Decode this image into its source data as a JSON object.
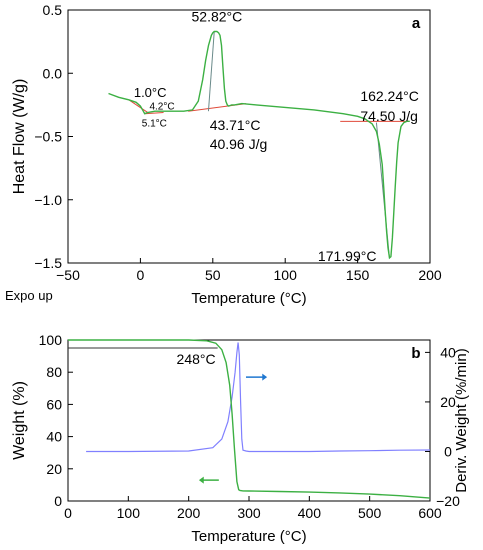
{
  "colors": {
    "dsc_curve": "#3cb043",
    "tangent": "#e04a3a",
    "baseline": "#6a8a8a",
    "weight_curve": "#3cb043",
    "deriv_curve": "#8080ff",
    "weight_arrow": "#3cb043",
    "deriv_arrow": "#1f77d0",
    "axis": "#000000"
  },
  "chart_data": [
    {
      "type": "line",
      "panel_label": "a",
      "xlabel": "Temperature (°C)",
      "ylabel": "Heat Flow (W/g)",
      "corner_label": "Expo up",
      "xlim": [
        -50,
        200
      ],
      "ylim": [
        -1.5,
        0.5
      ],
      "xticks": [
        -50,
        0,
        50,
        100,
        150,
        200
      ],
      "xtick_labels": [
        "−50",
        "0",
        "50",
        "100",
        "150",
        "200"
      ],
      "yticks": [
        0.5,
        0.0,
        -0.5,
        -1.0,
        -1.5
      ],
      "ytick_labels": [
        "0.5",
        "0.0",
        "−0.5",
        "−1.0",
        "−1.5"
      ],
      "grid": false,
      "series": [
        {
          "x": [
            -22,
            -15,
            -8,
            -3,
            0,
            2,
            3,
            5,
            10,
            20,
            30,
            36,
            40,
            43,
            45,
            47,
            49,
            50,
            51,
            52,
            52.8,
            54,
            55,
            56,
            57,
            58,
            59,
            60,
            61,
            63,
            65,
            70,
            80,
            100,
            120,
            140,
            150,
            155,
            160,
            163,
            165,
            167,
            168,
            169,
            170,
            171,
            172,
            173,
            174,
            175,
            176,
            177,
            178,
            180,
            182,
            184,
            186
          ],
          "y": [
            -0.16,
            -0.19,
            -0.21,
            -0.23,
            -0.26,
            -0.3,
            -0.32,
            -0.31,
            -0.3,
            -0.3,
            -0.3,
            -0.29,
            -0.22,
            -0.05,
            0.1,
            0.22,
            0.3,
            0.32,
            0.33,
            0.33,
            0.33,
            0.32,
            0.3,
            0.22,
            0.05,
            -0.12,
            -0.22,
            -0.25,
            -0.26,
            -0.25,
            -0.25,
            -0.24,
            -0.25,
            -0.27,
            -0.29,
            -0.32,
            -0.34,
            -0.36,
            -0.4,
            -0.46,
            -0.56,
            -0.72,
            -0.9,
            -1.08,
            -1.25,
            -1.38,
            -1.46,
            -1.45,
            -1.3,
            -1.1,
            -0.9,
            -0.7,
            -0.55,
            -0.42,
            -0.39,
            -0.38,
            -0.38
          ]
        }
      ],
      "annotations": [
        {
          "text": "52.82°C",
          "x": 52.82,
          "y": 0.33
        },
        {
          "text": "1.0°C",
          "x": 1.0,
          "y": -0.26
        },
        {
          "text": "4.2°C",
          "x": 4.2,
          "y": -0.31
        },
        {
          "text": "5.1°C",
          "x": 5.1,
          "y": -0.32
        },
        {
          "text": "43.71°C",
          "x": 43.71,
          "y": -0.3
        },
        {
          "text": "40.96 J/g",
          "x": 43.71,
          "y": -0.3
        },
        {
          "text": "162.24°C",
          "x": 162.24,
          "y": -0.4
        },
        {
          "text": "74.50 J/g",
          "x": 162.24,
          "y": -0.4
        },
        {
          "text": "171.99°C",
          "x": 171.99,
          "y": -1.46
        }
      ]
    },
    {
      "type": "line",
      "panel_label": "b",
      "xlabel": "Temperature (°C)",
      "ylabel": "Weight (%)",
      "y2label": "Deriv. Weight (%/min)",
      "xlim": [
        0,
        600
      ],
      "ylim": [
        0,
        100
      ],
      "y2lim": [
        -20,
        45
      ],
      "xticks": [
        0,
        100,
        200,
        300,
        400,
        500,
        600
      ],
      "yticks": [
        0,
        20,
        40,
        60,
        80,
        100
      ],
      "y2ticks": [
        -20,
        0,
        20,
        40
      ],
      "y2tick_labels": [
        "−20",
        "0",
        "20",
        "40"
      ],
      "grid": false,
      "series": [
        {
          "axis": "left",
          "x": [
            0,
            100,
            200,
            230,
            245,
            255,
            262,
            268,
            272,
            276,
            280,
            283,
            285,
            290,
            300,
            350,
            400,
            450,
            500,
            550,
            600
          ],
          "y": [
            100,
            100,
            100,
            99.5,
            98,
            94,
            86,
            72,
            54,
            32,
            12,
            7,
            6.5,
            6.3,
            6.2,
            5.9,
            5.5,
            5.0,
            4.3,
            3.3,
            1.8
          ]
        },
        {
          "axis": "right",
          "x": [
            30,
            100,
            200,
            240,
            255,
            265,
            272,
            277,
            280,
            282,
            284,
            286,
            288,
            290,
            295,
            300,
            350,
            400,
            450,
            500,
            550,
            600
          ],
          "y": [
            0,
            0,
            0.2,
            1.5,
            5,
            12,
            22,
            32,
            40,
            44,
            39,
            20,
            5,
            0.5,
            0.2,
            0,
            0,
            0,
            0.2,
            0.3,
            0.5,
            0.6
          ]
        }
      ],
      "reference_line_y": 95,
      "annotations": [
        {
          "text": "248°C",
          "x": 248,
          "y": 95
        }
      ]
    }
  ]
}
